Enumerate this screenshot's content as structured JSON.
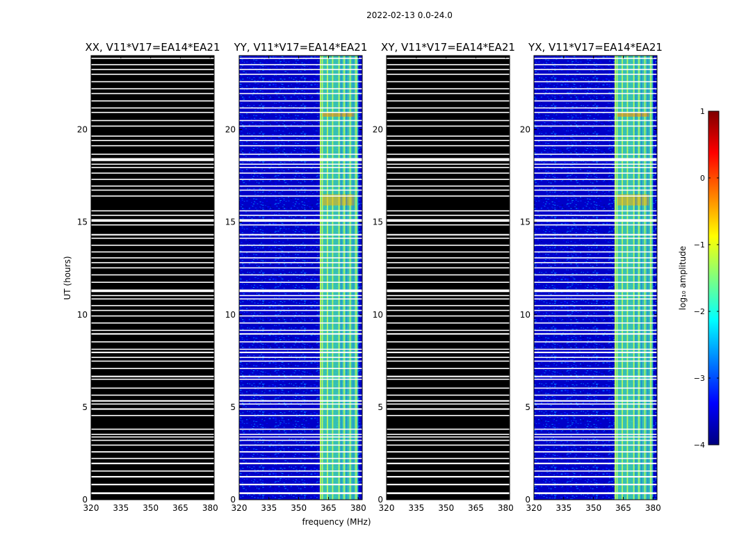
{
  "figure": {
    "title": "2022-02-13 0.0-24.0"
  },
  "chart_data": {
    "type": "heatmap",
    "panels": [
      {
        "title": "XX, V11*V17=EA14*EA21",
        "pol": "XX",
        "empty": true
      },
      {
        "title": "YY, V11*V17=EA14*EA21",
        "pol": "YY",
        "empty": false
      },
      {
        "title": "XY, V11*V17=EA14*EA21",
        "pol": "XY",
        "empty": true
      },
      {
        "title": "YX, V11*V17=EA14*EA21",
        "pol": "YX",
        "empty": false
      }
    ],
    "xlabel": "frequency (MHz)",
    "ylabel": "UT (hours)",
    "xlim": [
      320,
      382
    ],
    "ylim": [
      0,
      24
    ],
    "xticks": [
      320,
      335,
      350,
      365,
      380
    ],
    "xtick_labels": [
      "320",
      "335",
      "350",
      "365",
      "380"
    ],
    "yticks": [
      0,
      5,
      10,
      15,
      20
    ],
    "ytick_labels": [
      "0",
      "5",
      "10",
      "15",
      "20"
    ],
    "flagged_bands_hours": [
      [
        0.3,
        0.4
      ],
      [
        0.78,
        0.86
      ],
      [
        1.2,
        1.28
      ],
      [
        1.52,
        1.58
      ],
      [
        1.92,
        2.0
      ],
      [
        2.2,
        2.26
      ],
      [
        2.55,
        2.62
      ],
      [
        2.92,
        2.98
      ],
      [
        3.18,
        3.24
      ],
      [
        3.36,
        3.42
      ],
      [
        3.5,
        3.56
      ],
      [
        3.78,
        3.84
      ],
      [
        4.52,
        4.58
      ],
      [
        4.86,
        4.94
      ],
      [
        5.14,
        5.2
      ],
      [
        5.3,
        5.38
      ],
      [
        5.62,
        5.68
      ],
      [
        6.0,
        6.06
      ],
      [
        6.48,
        6.54
      ],
      [
        6.62,
        6.7
      ],
      [
        7.06,
        7.12
      ],
      [
        7.46,
        7.52
      ],
      [
        7.66,
        7.72
      ],
      [
        7.92,
        8.0
      ],
      [
        8.1,
        8.16
      ],
      [
        8.5,
        8.56
      ],
      [
        8.92,
        9.0
      ],
      [
        9.12,
        9.18
      ],
      [
        9.52,
        9.58
      ],
      [
        9.9,
        9.96
      ],
      [
        10.2,
        10.26
      ],
      [
        10.46,
        10.52
      ],
      [
        10.82,
        10.88
      ],
      [
        11.0,
        11.06
      ],
      [
        11.22,
        11.36
      ],
      [
        11.72,
        11.78
      ],
      [
        12.12,
        12.18
      ],
      [
        12.5,
        12.56
      ],
      [
        12.78,
        12.84
      ],
      [
        13.04,
        13.1
      ],
      [
        13.36,
        13.42
      ],
      [
        13.72,
        13.78
      ],
      [
        14.1,
        14.16
      ],
      [
        14.28,
        14.36
      ],
      [
        14.82,
        14.88
      ],
      [
        15.02,
        15.16
      ],
      [
        15.34,
        15.4
      ],
      [
        15.58,
        15.64
      ],
      [
        16.38,
        16.44
      ],
      [
        16.7,
        16.76
      ],
      [
        16.92,
        16.98
      ],
      [
        17.28,
        17.34
      ],
      [
        17.62,
        17.68
      ],
      [
        17.92,
        17.98
      ],
      [
        18.1,
        18.16
      ],
      [
        18.3,
        18.46
      ],
      [
        18.64,
        18.7
      ],
      [
        19.1,
        19.16
      ],
      [
        19.38,
        19.44
      ],
      [
        19.62,
        19.68
      ],
      [
        20.16,
        20.22
      ],
      [
        20.46,
        20.52
      ],
      [
        20.9,
        20.96
      ],
      [
        21.14,
        21.2
      ],
      [
        21.52,
        21.58
      ],
      [
        21.92,
        21.98
      ],
      [
        22.18,
        22.24
      ],
      [
        22.56,
        22.62
      ],
      [
        22.96,
        23.02
      ],
      [
        23.22,
        23.28
      ],
      [
        23.48,
        23.54
      ],
      [
        23.82,
        23.88
      ]
    ],
    "rfi_columns_mhz": [
      [
        360.6,
        361.3
      ],
      [
        361.6,
        362.2
      ],
      [
        364.2,
        364.8
      ],
      [
        366.8,
        367.4
      ],
      [
        370.0,
        370.6
      ],
      [
        372.6,
        373.2
      ],
      [
        375.6,
        376.2
      ],
      [
        378.6,
        379.2
      ]
    ],
    "signal_band_mhz": [
      361,
      380
    ],
    "colorbar": {
      "label": "log₁₀ amplitude",
      "range": [
        -4,
        1
      ],
      "ticks": [
        1,
        0,
        -1,
        -2,
        -3,
        -4
      ],
      "tick_labels": [
        "1",
        "0",
        "−1",
        "−2",
        "−3",
        "−4"
      ],
      "colormap": [
        "#00007f",
        "#0000ff",
        "#007fff",
        "#00ffff",
        "#7fff7f",
        "#ffff00",
        "#ff7f00",
        "#ff0000",
        "#7f0000"
      ]
    }
  }
}
